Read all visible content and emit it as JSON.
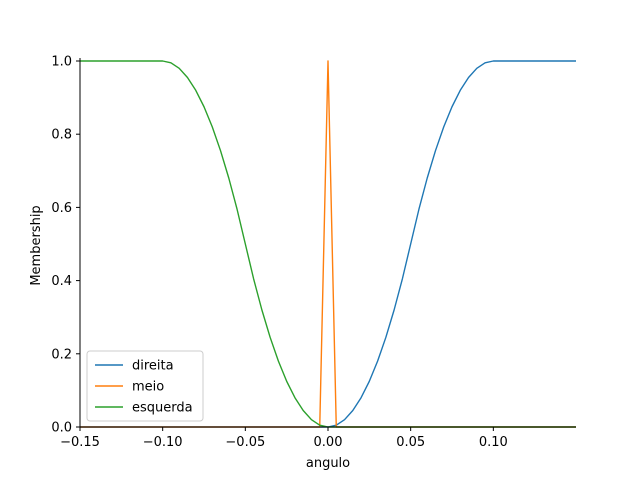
{
  "chart_data": {
    "type": "line",
    "title": "",
    "xlabel": "angulo",
    "ylabel": "Membership",
    "xlim": [
      -0.15,
      0.15
    ],
    "ylim": [
      0.0,
      1.0
    ],
    "x_ticks": [
      {
        "value": -0.15,
        "label": "−0.15"
      },
      {
        "value": -0.1,
        "label": "−0.10"
      },
      {
        "value": -0.05,
        "label": "−0.05"
      },
      {
        "value": 0.0,
        "label": "0.00"
      },
      {
        "value": 0.05,
        "label": "0.05"
      },
      {
        "value": 0.1,
        "label": "0.10"
      }
    ],
    "y_ticks": [
      {
        "value": 0.0,
        "label": "0.0"
      },
      {
        "value": 0.2,
        "label": "0.2"
      },
      {
        "value": 0.4,
        "label": "0.4"
      },
      {
        "value": 0.6,
        "label": "0.6"
      },
      {
        "value": 0.8,
        "label": "0.8"
      },
      {
        "value": 1.0,
        "label": "1.0"
      }
    ],
    "grid": false,
    "legend_position": "lower-left",
    "series": [
      {
        "name": "direita",
        "color": "#1f77b4",
        "x": [
          -0.15,
          0.0,
          0.005,
          0.01,
          0.015,
          0.02,
          0.025,
          0.03,
          0.035,
          0.04,
          0.045,
          0.05,
          0.055,
          0.06,
          0.065,
          0.07,
          0.075,
          0.08,
          0.085,
          0.09,
          0.095,
          0.1,
          0.15
        ],
        "y": [
          0.0,
          0.0,
          0.005,
          0.02,
          0.045,
          0.08,
          0.125,
          0.18,
          0.245,
          0.32,
          0.405,
          0.5,
          0.595,
          0.68,
          0.755,
          0.82,
          0.875,
          0.92,
          0.955,
          0.98,
          0.995,
          1.0,
          1.0
        ]
      },
      {
        "name": "meio",
        "color": "#ff7f0e",
        "x": [
          -0.15,
          -0.005,
          0.0,
          0.005,
          0.15
        ],
        "y": [
          0.0,
          0.0,
          1.0,
          0.0,
          0.0
        ]
      },
      {
        "name": "esquerda",
        "color": "#2ca02c",
        "x": [
          -0.15,
          -0.1,
          -0.095,
          -0.09,
          -0.085,
          -0.08,
          -0.075,
          -0.07,
          -0.065,
          -0.06,
          -0.055,
          -0.05,
          -0.045,
          -0.04,
          -0.035,
          -0.03,
          -0.025,
          -0.02,
          -0.015,
          -0.01,
          -0.005,
          0.0,
          0.15
        ],
        "y": [
          1.0,
          1.0,
          0.995,
          0.98,
          0.955,
          0.92,
          0.875,
          0.82,
          0.755,
          0.68,
          0.595,
          0.5,
          0.405,
          0.32,
          0.245,
          0.18,
          0.125,
          0.08,
          0.045,
          0.02,
          0.005,
          0.0,
          0.0
        ]
      }
    ]
  }
}
